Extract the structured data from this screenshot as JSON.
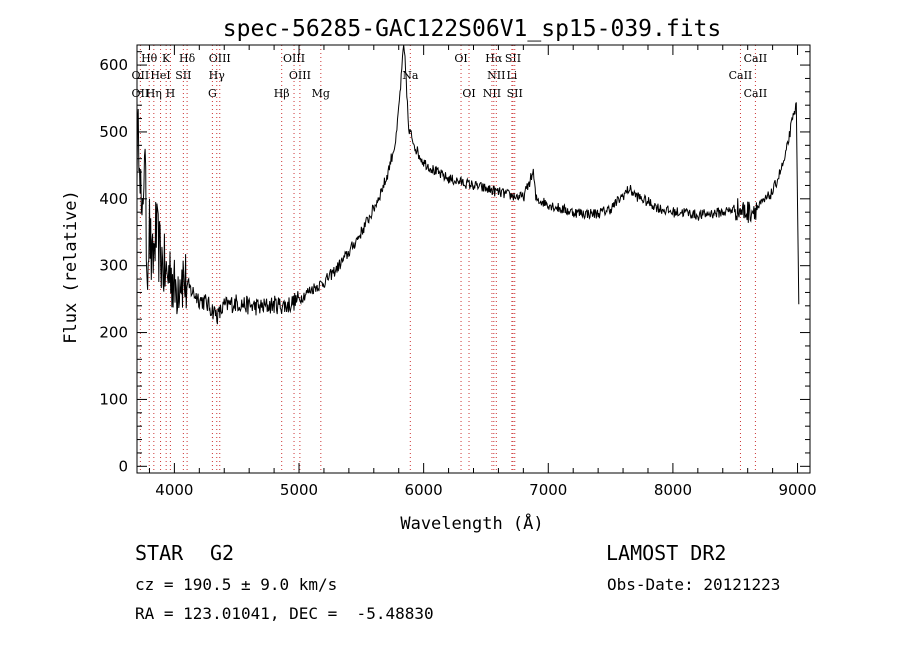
{
  "chart_data": {
    "type": "line",
    "title": "spec-56285-GAC122S06V1_sp15-039.fits",
    "xlabel": "Wavelength (Å)",
    "ylabel": "Flux (relative)",
    "xlim": [
      3700,
      9100
    ],
    "ylim": [
      -10,
      630
    ],
    "xticks": [
      4000,
      5000,
      6000,
      7000,
      8000,
      9000
    ],
    "yticks": [
      0,
      100,
      200,
      300,
      400,
      500,
      600
    ],
    "grid": false,
    "series": [
      {
        "points": [
          [
            3700,
            470
          ],
          [
            3720,
            500
          ],
          [
            3740,
            330
          ],
          [
            3760,
            490
          ],
          [
            3780,
            300
          ],
          [
            3800,
            360
          ],
          [
            3820,
            290
          ],
          [
            3850,
            350
          ],
          [
            3880,
            320
          ],
          [
            3910,
            300
          ],
          [
            3940,
            280
          ],
          [
            3970,
            300
          ],
          [
            4000,
            260
          ],
          [
            4050,
            290
          ],
          [
            4100,
            270
          ],
          [
            4150,
            260
          ],
          [
            4200,
            250
          ],
          [
            4250,
            245
          ],
          [
            4300,
            235
          ],
          [
            4350,
            225
          ],
          [
            4400,
            240
          ],
          [
            4500,
            245
          ],
          [
            4600,
            240
          ],
          [
            4700,
            238
          ],
          [
            4800,
            242
          ],
          [
            4900,
            240
          ],
          [
            5000,
            250
          ],
          [
            5100,
            265
          ],
          [
            5200,
            275
          ],
          [
            5300,
            295
          ],
          [
            5400,
            320
          ],
          [
            5500,
            350
          ],
          [
            5600,
            385
          ],
          [
            5700,
            430
          ],
          [
            5780,
            490
          ],
          [
            5820,
            580
          ],
          [
            5840,
            630
          ],
          [
            5860,
            580
          ],
          [
            5880,
            500
          ],
          [
            5900,
            495
          ],
          [
            5950,
            470
          ],
          [
            6000,
            455
          ],
          [
            6100,
            440
          ],
          [
            6200,
            430
          ],
          [
            6300,
            425
          ],
          [
            6400,
            420
          ],
          [
            6500,
            415
          ],
          [
            6600,
            410
          ],
          [
            6700,
            405
          ],
          [
            6800,
            402
          ],
          [
            6880,
            440
          ],
          [
            6900,
            400
          ],
          [
            7000,
            392
          ],
          [
            7100,
            385
          ],
          [
            7200,
            380
          ],
          [
            7300,
            378
          ],
          [
            7400,
            378
          ],
          [
            7500,
            385
          ],
          [
            7600,
            405
          ],
          [
            7650,
            415
          ],
          [
            7700,
            405
          ],
          [
            7800,
            395
          ],
          [
            7900,
            385
          ],
          [
            8000,
            380
          ],
          [
            8100,
            380
          ],
          [
            8200,
            375
          ],
          [
            8300,
            378
          ],
          [
            8400,
            380
          ],
          [
            8500,
            385
          ],
          [
            8600,
            380
          ],
          [
            8700,
            390
          ],
          [
            8800,
            410
          ],
          [
            8900,
            460
          ],
          [
            8950,
            510
          ],
          [
            8990,
            540
          ],
          [
            9010,
            250
          ]
        ]
      }
    ],
    "lines_of_interest": [
      {
        "label": "Hθ",
        "wavelength": 3798,
        "row": 1
      },
      {
        "label": "K",
        "wavelength": 3934,
        "row": 1
      },
      {
        "label": "Hδ",
        "wavelength": 4102,
        "row": 1
      },
      {
        "label": "OIII",
        "wavelength": 4364,
        "row": 1
      },
      {
        "label": "OIII",
        "wavelength": 4960,
        "row": 1
      },
      {
        "label": "OI",
        "wavelength": 6300,
        "row": 1
      },
      {
        "label": "Hα",
        "wavelength": 6563,
        "row": 1
      },
      {
        "label": "SII",
        "wavelength": 6717,
        "row": 1
      },
      {
        "label": "CaII",
        "wavelength": 8662,
        "row": 1
      },
      {
        "label": "OII",
        "wavelength": 3727,
        "row": 2
      },
      {
        "label": "HeI",
        "wavelength": 3889,
        "row": 2
      },
      {
        "label": "SII",
        "wavelength": 4072,
        "row": 2
      },
      {
        "label": "Hγ",
        "wavelength": 4340,
        "row": 2
      },
      {
        "label": "OIII",
        "wavelength": 5007,
        "row": 2
      },
      {
        "label": "Na",
        "wavelength": 5893,
        "row": 2
      },
      {
        "label": "NII",
        "wavelength": 6583,
        "row": 2
      },
      {
        "label": "Li",
        "wavelength": 6708,
        "row": 2
      },
      {
        "label": "CaII",
        "wavelength": 8542,
        "row": 2
      },
      {
        "label": "OII",
        "wavelength": 3727,
        "row": 3
      },
      {
        "label": "Hη",
        "wavelength": 3835,
        "row": 3
      },
      {
        "label": "H",
        "wavelength": 3968,
        "row": 3
      },
      {
        "label": "G",
        "wavelength": 4305,
        "row": 3
      },
      {
        "label": "Hβ",
        "wavelength": 4861,
        "row": 3
      },
      {
        "label": "Mg",
        "wavelength": 5175,
        "row": 3
      },
      {
        "label": "OI",
        "wavelength": 6364,
        "row": 3
      },
      {
        "label": "NII",
        "wavelength": 6548,
        "row": 3
      },
      {
        "label": "SII",
        "wavelength": 6731,
        "row": 3
      },
      {
        "label": "CaII",
        "wavelength": 8662,
        "row": 3
      }
    ]
  },
  "info": {
    "object_class": "STAR",
    "subclass": "G2",
    "survey": "LAMOST DR2",
    "redshift": "cz = 190.5 ± 9.0 km/s",
    "obs_date": "Obs-Date: 20121223",
    "coords": "RA = 123.01041, DEC =  -5.48830"
  },
  "colors": {
    "spectrum": "#000000",
    "marker_lines": "#cc3333"
  }
}
